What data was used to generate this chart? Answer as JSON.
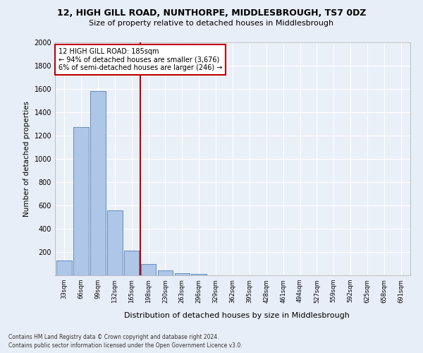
{
  "title1": "12, HIGH GILL ROAD, NUNTHORPE, MIDDLESBROUGH, TS7 0DZ",
  "title2": "Size of property relative to detached houses in Middlesbrough",
  "xlabel": "Distribution of detached houses by size in Middlesbrough",
  "ylabel": "Number of detached properties",
  "categories": [
    "33sqm",
    "66sqm",
    "99sqm",
    "132sqm",
    "165sqm",
    "198sqm",
    "230sqm",
    "263sqm",
    "296sqm",
    "329sqm",
    "362sqm",
    "395sqm",
    "428sqm",
    "461sqm",
    "494sqm",
    "527sqm",
    "559sqm",
    "592sqm",
    "625sqm",
    "658sqm",
    "691sqm"
  ],
  "values": [
    130,
    1270,
    1580,
    560,
    215,
    95,
    45,
    20,
    10,
    0,
    0,
    0,
    0,
    0,
    0,
    0,
    0,
    0,
    0,
    0,
    0
  ],
  "bar_color": "#aec6e8",
  "bar_edge_color": "#5580b0",
  "vline_x_index": 4.5,
  "vline_color": "#c00000",
  "annotation_text": "12 HIGH GILL ROAD: 185sqm\n← 94% of detached houses are smaller (3,676)\n6% of semi-detached houses are larger (246) →",
  "annotation_box_color": "white",
  "annotation_box_edge_color": "#c00000",
  "ylim": [
    0,
    2000
  ],
  "yticks": [
    0,
    200,
    400,
    600,
    800,
    1000,
    1200,
    1400,
    1600,
    1800,
    2000
  ],
  "footnote1": "Contains HM Land Registry data © Crown copyright and database right 2024.",
  "footnote2": "Contains public sector information licensed under the Open Government Licence v3.0.",
  "bg_color": "#e8eef7",
  "plot_bg_color": "#eaf0f8"
}
